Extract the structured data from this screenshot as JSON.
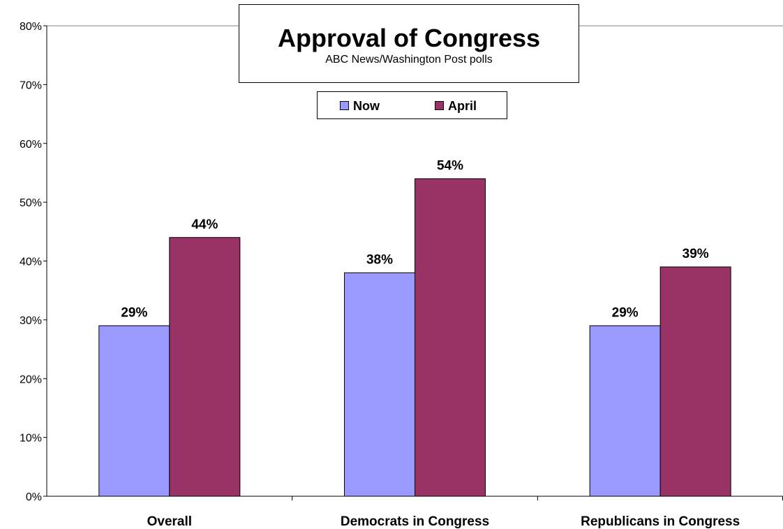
{
  "chart_data": {
    "type": "bar",
    "title": "Approval of Congress",
    "subtitle": "ABC News/Washington Post polls",
    "categories": [
      "Overall",
      "Democrats in Congress",
      "Republicans in Congress"
    ],
    "series": [
      {
        "name": "Now",
        "values": [
          29,
          38,
          29
        ],
        "color": "#9999ff"
      },
      {
        "name": "April",
        "values": [
          44,
          54,
          39
        ],
        "color": "#993366"
      }
    ],
    "ylim": [
      0,
      80
    ],
    "yticks": [
      0,
      10,
      20,
      30,
      40,
      50,
      60,
      70,
      80
    ],
    "ytick_labels": [
      "0%",
      "10%",
      "20%",
      "30%",
      "40%",
      "50%",
      "60%",
      "70%",
      "80%"
    ],
    "data_labels": [
      [
        "29%",
        "38%",
        "29%"
      ],
      [
        "44%",
        "54%",
        "39%"
      ]
    ],
    "xlabel": "",
    "ylabel": "",
    "grid": "top-line-only",
    "legend": "top-center"
  }
}
